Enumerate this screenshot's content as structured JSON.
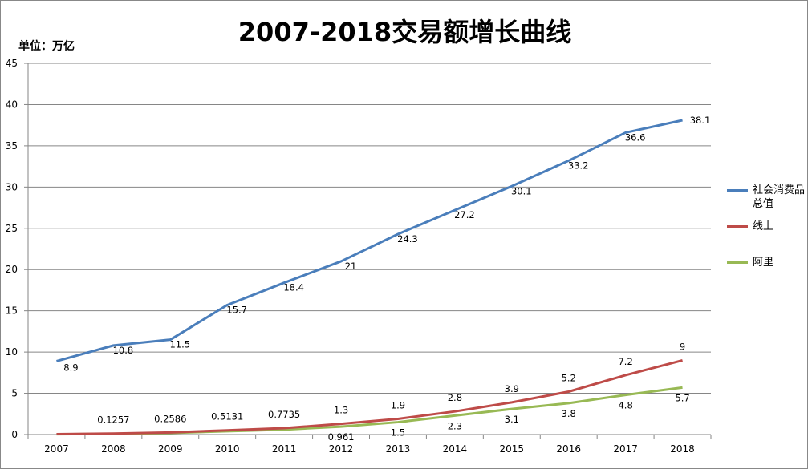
{
  "chart_data": {
    "type": "line",
    "title": "2007-2018交易额增长曲线",
    "unit_label": "单位：万亿",
    "categories": [
      "2007",
      "2008",
      "2009",
      "2010",
      "2011",
      "2012",
      "2013",
      "2014",
      "2015",
      "2016",
      "2017",
      "2018"
    ],
    "ylim": [
      0,
      45
    ],
    "yticks": [
      0,
      5,
      10,
      15,
      20,
      25,
      30,
      35,
      40,
      45
    ],
    "grid": true,
    "legend": "right",
    "series": [
      {
        "name": "社会消费品总值",
        "color": "#4a7ebb",
        "values": [
          8.9,
          10.8,
          11.5,
          15.7,
          18.4,
          21,
          24.3,
          27.2,
          30.1,
          33.2,
          36.6,
          38.1
        ],
        "labels": [
          "8.9",
          "10.8",
          "11.5",
          "15.7",
          "18.4",
          "21",
          "24.3",
          "27.2",
          "30.1",
          "33.2",
          "36.6",
          "38.1"
        ]
      },
      {
        "name": "线上",
        "color": "#be4b48",
        "values": [
          0.05,
          0.1257,
          0.2586,
          0.5131,
          0.7735,
          1.3,
          1.9,
          2.8,
          3.9,
          5.2,
          7.2,
          9
        ],
        "labels": [
          "",
          "0.1257",
          "0.2586",
          "0.5131",
          "0.7735",
          "1.3",
          "1.9",
          "2.8",
          "3.9",
          "5.2",
          "7.2",
          "9"
        ]
      },
      {
        "name": "阿里",
        "color": "#98b954",
        "values": [
          0.04,
          0.08,
          0.2,
          0.4,
          0.6,
          0.961,
          1.5,
          2.3,
          3.1,
          3.8,
          4.8,
          5.7
        ],
        "labels": [
          "",
          "",
          "",
          "",
          "",
          "0.961",
          "1.5",
          "2.3",
          "3.1",
          "3.8",
          "4.8",
          "5.7"
        ]
      }
    ]
  }
}
